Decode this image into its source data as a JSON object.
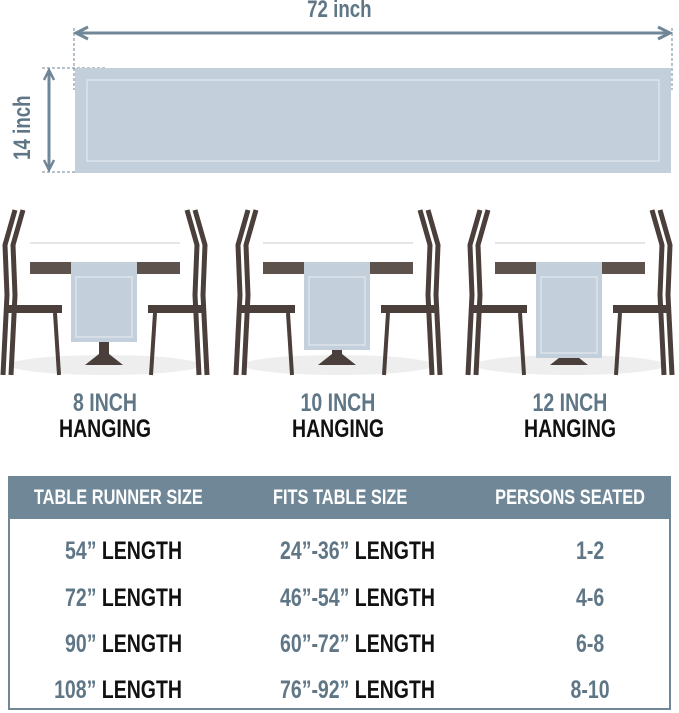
{
  "dimensions": {
    "width": "72 inch",
    "height": "14 inch"
  },
  "colors": {
    "runner": "#c3d0dc",
    "accent": "#5f7686",
    "header_bg": "#6f8797",
    "chair": "#4a3f3a"
  },
  "scenes": [
    {
      "size": "8 INCH",
      "label": "HANGING",
      "hang": 8
    },
    {
      "size": "10 INCH",
      "label": "HANGING",
      "hang": 10
    },
    {
      "size": "12 INCH",
      "label": "HANGING",
      "hang": 12
    }
  ],
  "table": {
    "headers": [
      "TABLE RUNNER SIZE",
      "FITS TABLE SIZE",
      "PERSONS SEATED"
    ],
    "rows": [
      {
        "runner": "54”",
        "runner_unit": "LENGTH",
        "fits": "24”-36”",
        "fits_unit": "LENGTH",
        "persons": "1-2"
      },
      {
        "runner": "72”",
        "runner_unit": "LENGTH",
        "fits": "46”-54”",
        "fits_unit": "LENGTH",
        "persons": "4-6"
      },
      {
        "runner": "90”",
        "runner_unit": "LENGTH",
        "fits": "60”-72”",
        "fits_unit": "LENGTH",
        "persons": "6-8"
      },
      {
        "runner": "108”",
        "runner_unit": "LENGTH",
        "fits": "76”-92”",
        "fits_unit": "LENGTH",
        "persons": "8-10"
      }
    ]
  }
}
